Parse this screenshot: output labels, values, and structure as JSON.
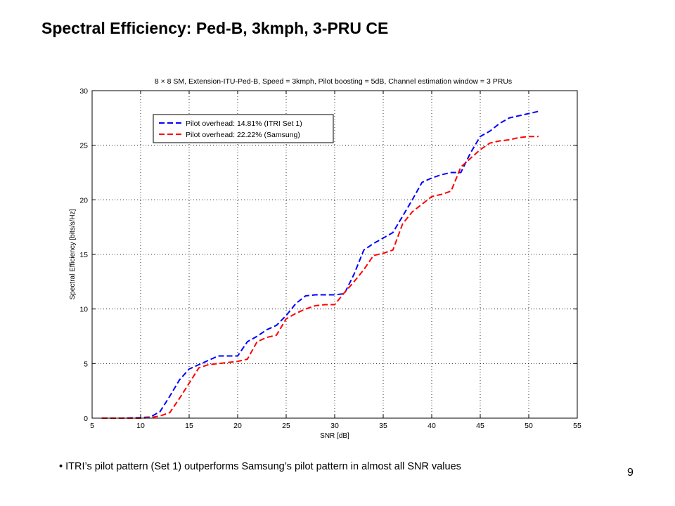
{
  "slide": {
    "title": "Spectral Efficiency: Ped-B, 3kmph, 3-PRU CE",
    "bullet_marker": "•",
    "bullet_text": "ITRI’s pilot pattern (Set 1) outperforms Samsung’s pilot pattern in almost all SNR values",
    "page_number": "9"
  },
  "chart_data": {
    "type": "line",
    "title": "8 × 8  SM, Extension-ITU-Ped-B, Speed = 3kmph, Pilot boosting = 5dB, Channel estimation window = 3 PRUs",
    "xlabel": "SNR [dB]",
    "ylabel": "Spectral Efficiency [bits/s/Hz]",
    "xlim": [
      5,
      55
    ],
    "ylim": [
      0,
      30
    ],
    "xticks": [
      5,
      10,
      15,
      20,
      25,
      30,
      35,
      40,
      45,
      50,
      55
    ],
    "yticks": [
      0,
      5,
      10,
      15,
      20,
      25,
      30
    ],
    "grid": true,
    "legend_position": "top-left",
    "series": [
      {
        "name": "Pilot overhead: 14.81% (ITRI Set 1)",
        "color": "#0000ff",
        "style": "dashed",
        "x": [
          6,
          8,
          10,
          11,
          12,
          13,
          14,
          15,
          16,
          17,
          18,
          19,
          20,
          21,
          22,
          23,
          24,
          25,
          26,
          27,
          28,
          29,
          30,
          31,
          32,
          33,
          34,
          35,
          36,
          37,
          38,
          39,
          40,
          41,
          42,
          43,
          44,
          45,
          46,
          47,
          48,
          49,
          50,
          51
        ],
        "y": [
          0,
          0,
          0.05,
          0.1,
          0.6,
          2.0,
          3.5,
          4.5,
          4.9,
          5.3,
          5.7,
          5.7,
          5.7,
          7.0,
          7.5,
          8.1,
          8.5,
          9.4,
          10.5,
          11.2,
          11.3,
          11.3,
          11.3,
          11.4,
          13.2,
          15.4,
          16.0,
          16.5,
          17.0,
          18.5,
          20.0,
          21.6,
          22.0,
          22.3,
          22.5,
          22.5,
          24.3,
          25.8,
          26.3,
          27.0,
          27.5,
          27.7,
          27.9,
          28.1
        ]
      },
      {
        "name": "Pilot overhead: 22.22% (Samsung)",
        "color": "#ff0000",
        "style": "dashed",
        "x": [
          6,
          8,
          10,
          11,
          12,
          13,
          14,
          15,
          16,
          17,
          18,
          19,
          20,
          21,
          22,
          23,
          24,
          25,
          26,
          27,
          28,
          29,
          30,
          31,
          32,
          33,
          34,
          35,
          36,
          37,
          38,
          39,
          40,
          41,
          42,
          43,
          44,
          45,
          46,
          47,
          48,
          49,
          50,
          51
        ],
        "y": [
          0,
          0,
          0,
          0.05,
          0.2,
          0.5,
          1.8,
          3.2,
          4.6,
          4.9,
          5.0,
          5.1,
          5.2,
          5.4,
          7.0,
          7.4,
          7.6,
          9.1,
          9.6,
          10.0,
          10.3,
          10.4,
          10.4,
          11.5,
          12.5,
          13.6,
          14.9,
          15.1,
          15.4,
          17.8,
          18.9,
          19.6,
          20.3,
          20.5,
          20.8,
          23.0,
          23.8,
          24.6,
          25.2,
          25.4,
          25.5,
          25.7,
          25.8,
          25.8
        ]
      }
    ]
  }
}
